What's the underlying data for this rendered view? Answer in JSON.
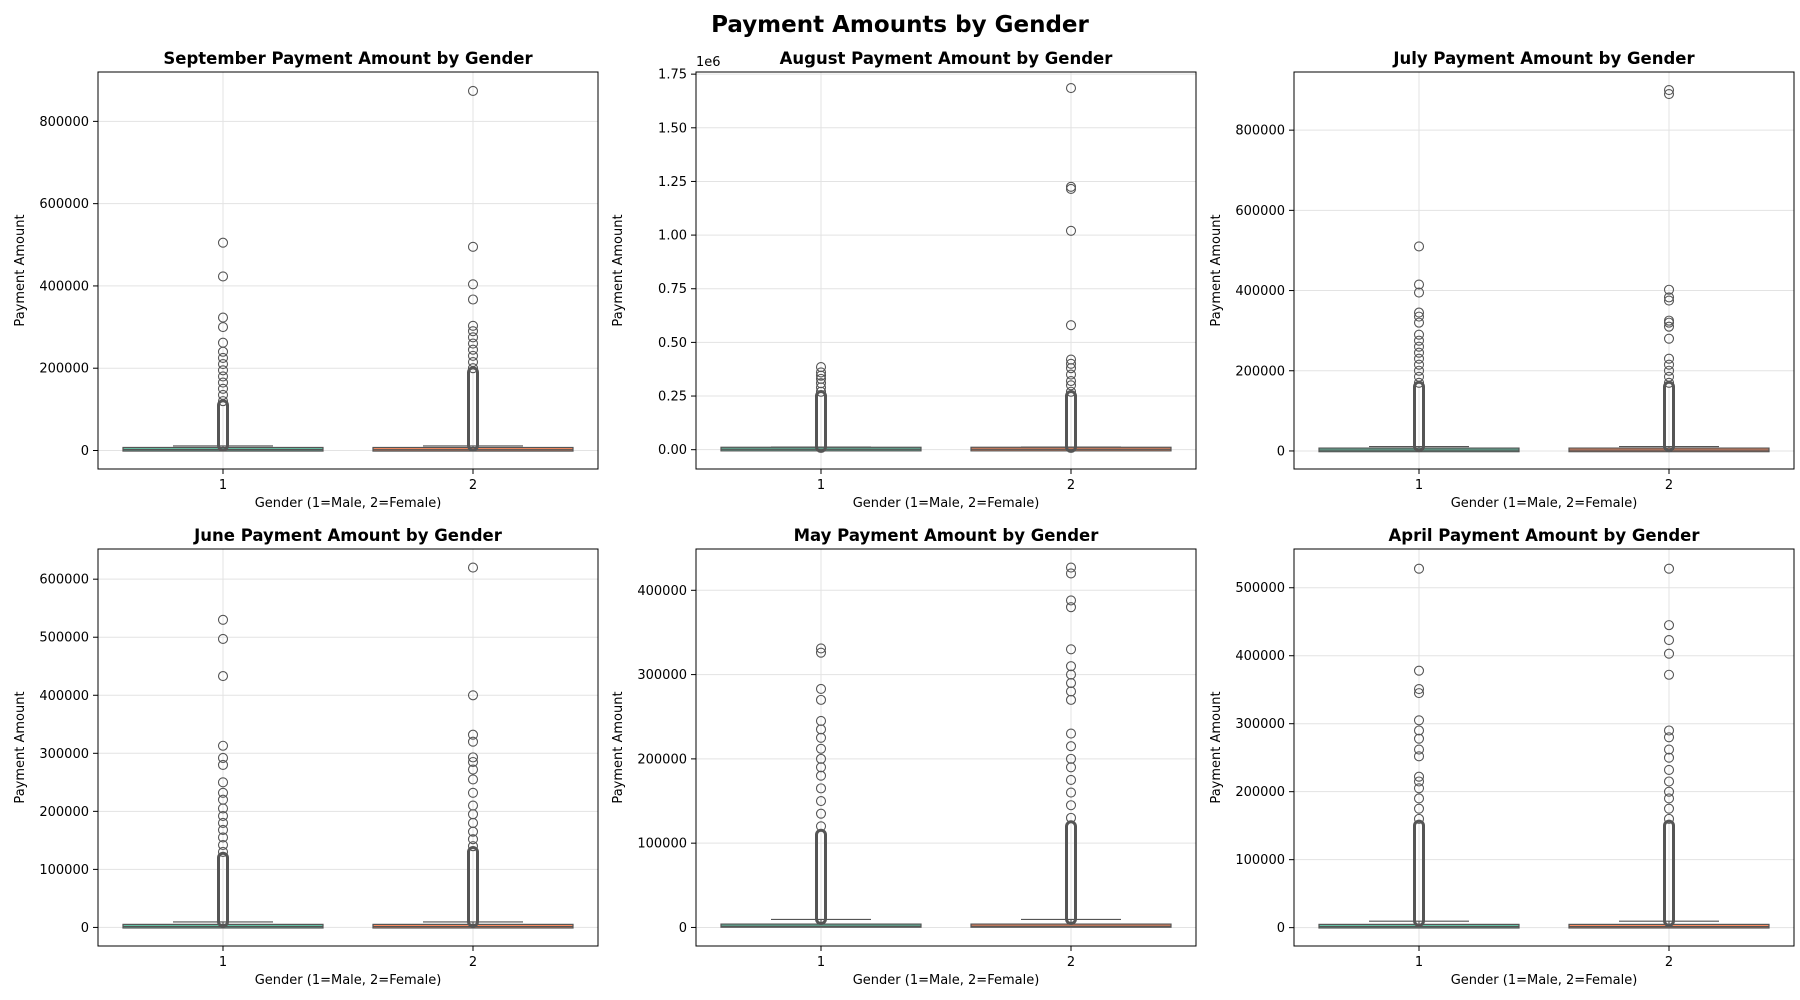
{
  "figure_title": "Payment Amounts by Gender",
  "colors": {
    "male_box": "#66c2a5",
    "female_box": "#fc8d62",
    "outlier": "#555555",
    "grid": "#e3e3e3"
  },
  "chart_data": [
    {
      "type": "box",
      "title": "September Payment Amount by Gender",
      "xlabel": "Gender (1=Male, 2=Female)",
      "ylabel": "Payment Amount",
      "categories": [
        "1",
        "2"
      ],
      "ylim": [
        -45000,
        920000
      ],
      "yticks": [
        0,
        200000,
        400000,
        600000,
        800000
      ],
      "ytick_labels": [
        "0",
        "200000",
        "400000",
        "600000",
        "800000"
      ],
      "offset_label": "",
      "grid": true,
      "series": [
        {
          "category": "1",
          "q1": 900,
          "median": 2100,
          "q3": 5000,
          "whisker_low": 0,
          "whisker_high": 11000,
          "dense_from": 12000,
          "dense_to": 110000,
          "outliers": [
            120000,
            135000,
            150000,
            165000,
            180000,
            195000,
            210000,
            225000,
            240000,
            262000,
            300000,
            323000,
            423000,
            505000
          ]
        },
        {
          "category": "2",
          "q1": 800,
          "median": 2000,
          "q3": 5000,
          "whisker_low": 0,
          "whisker_high": 11000,
          "dense_from": 12000,
          "dense_to": 190000,
          "outliers": [
            200000,
            215000,
            230000,
            245000,
            260000,
            275000,
            290000,
            303000,
            367000,
            404000,
            495000,
            874000
          ]
        }
      ]
    },
    {
      "type": "box",
      "title": "August Payment Amount by Gender",
      "xlabel": "Gender (1=Male, 2=Female)",
      "ylabel": "Payment Amount",
      "categories": [
        "1",
        "2"
      ],
      "ylim": [
        -90000,
        1760000
      ],
      "yticks": [
        0,
        250000,
        500000,
        750000,
        1000000,
        1250000,
        1500000,
        1750000
      ],
      "ytick_labels": [
        "0.00",
        "0.25",
        "0.50",
        "0.75",
        "1.00",
        "1.25",
        "1.50",
        "1.75"
      ],
      "offset_label": "1e6",
      "grid": true,
      "series": [
        {
          "category": "1",
          "q1": 800,
          "median": 2000,
          "q3": 5000,
          "whisker_low": 0,
          "whisker_high": 12000,
          "dense_from": 13000,
          "dense_to": 250000,
          "outliers": [
            270000,
            290000,
            310000,
            330000,
            345000,
            360000,
            385000
          ]
        },
        {
          "category": "2",
          "q1": 800,
          "median": 2000,
          "q3": 5000,
          "whisker_low": 0,
          "whisker_high": 12000,
          "dense_from": 13000,
          "dense_to": 250000,
          "outliers": [
            270000,
            300000,
            320000,
            350000,
            380000,
            400000,
            420000,
            580000,
            1020000,
            1215000,
            1225000,
            1685000
          ]
        }
      ]
    },
    {
      "type": "box",
      "title": "July Payment Amount by Gender",
      "xlabel": "Gender (1=Male, 2=Female)",
      "ylabel": "Payment Amount",
      "categories": [
        "1",
        "2"
      ],
      "ylim": [
        -45000,
        945000
      ],
      "yticks": [
        0,
        200000,
        400000,
        600000,
        800000
      ],
      "ytick_labels": [
        "0",
        "200000",
        "400000",
        "600000",
        "800000"
      ],
      "offset_label": "",
      "grid": true,
      "series": [
        {
          "category": "1",
          "q1": 800,
          "median": 2000,
          "q3": 4500,
          "whisker_low": 0,
          "whisker_high": 11000,
          "dense_from": 12000,
          "dense_to": 160000,
          "outliers": [
            170000,
            185000,
            200000,
            215000,
            230000,
            245000,
            260000,
            275000,
            290000,
            320000,
            335000,
            345000,
            395000,
            415000,
            510000
          ]
        },
        {
          "category": "2",
          "q1": 800,
          "median": 2000,
          "q3": 4500,
          "whisker_low": 0,
          "whisker_high": 11000,
          "dense_from": 12000,
          "dense_to": 160000,
          "outliers": [
            170000,
            185000,
            200000,
            215000,
            230000,
            280000,
            310000,
            320000,
            325000,
            375000,
            383000,
            402000,
            890000,
            900000
          ]
        }
      ]
    },
    {
      "type": "box",
      "title": "June Payment Amount by Gender",
      "xlabel": "Gender (1=Male, 2=Female)",
      "ylabel": "Payment Amount",
      "categories": [
        "1",
        "2"
      ],
      "ylim": [
        -32000,
        652000
      ],
      "yticks": [
        0,
        100000,
        200000,
        300000,
        400000,
        500000,
        600000
      ],
      "ytick_labels": [
        "0",
        "100000",
        "200000",
        "300000",
        "400000",
        "500000",
        "600000"
      ],
      "offset_label": "",
      "grid": true,
      "series": [
        {
          "category": "1",
          "q1": 300,
          "median": 1500,
          "q3": 4000,
          "whisker_low": 0,
          "whisker_high": 9500,
          "dense_from": 10000,
          "dense_to": 120000,
          "outliers": [
            130000,
            142000,
            155000,
            168000,
            180000,
            192000,
            205000,
            220000,
            232000,
            250000,
            280000,
            292000,
            313000,
            433000,
            497000,
            530000
          ]
        },
        {
          "category": "2",
          "q1": 300,
          "median": 1500,
          "q3": 4000,
          "whisker_low": 0,
          "whisker_high": 9500,
          "dense_from": 10000,
          "dense_to": 130000,
          "outliers": [
            140000,
            152000,
            165000,
            180000,
            195000,
            210000,
            232000,
            255000,
            272000,
            285000,
            293000,
            320000,
            332000,
            400000,
            620000
          ]
        }
      ]
    },
    {
      "type": "box",
      "title": "May Payment Amount by Gender",
      "xlabel": "Gender (1=Male, 2=Female)",
      "ylabel": "Payment Amount",
      "categories": [
        "1",
        "2"
      ],
      "ylim": [
        -22000,
        449000
      ],
      "yticks": [
        0,
        100000,
        200000,
        300000,
        400000
      ],
      "ytick_labels": [
        "0",
        "100000",
        "200000",
        "300000",
        "400000"
      ],
      "offset_label": "",
      "grid": true,
      "series": [
        {
          "category": "1",
          "q1": 300,
          "median": 1500,
          "q3": 4000,
          "whisker_low": 0,
          "whisker_high": 9500,
          "dense_from": 10000,
          "dense_to": 110000,
          "outliers": [
            120000,
            135000,
            150000,
            165000,
            180000,
            190000,
            200000,
            212000,
            225000,
            235000,
            245000,
            270000,
            283000,
            326000,
            331000
          ]
        },
        {
          "category": "2",
          "q1": 300,
          "median": 1500,
          "q3": 4000,
          "whisker_low": 0,
          "whisker_high": 9500,
          "dense_from": 10000,
          "dense_to": 120000,
          "outliers": [
            130000,
            145000,
            160000,
            175000,
            190000,
            200000,
            215000,
            230000,
            270000,
            280000,
            290000,
            300000,
            310000,
            330000,
            380000,
            388000,
            420000,
            427000
          ]
        }
      ]
    },
    {
      "type": "box",
      "title": "April Payment Amount by Gender",
      "xlabel": "Gender (1=Male, 2=Female)",
      "ylabel": "Payment Amount",
      "categories": [
        "1",
        "2"
      ],
      "ylim": [
        -27000,
        557000
      ],
      "yticks": [
        0,
        100000,
        200000,
        300000,
        400000,
        500000
      ],
      "ytick_labels": [
        "0",
        "100000",
        "200000",
        "300000",
        "400000",
        "500000"
      ],
      "offset_label": "",
      "grid": true,
      "series": [
        {
          "category": "1",
          "q1": 300,
          "median": 1500,
          "q3": 4000,
          "whisker_low": 0,
          "whisker_high": 9500,
          "dense_from": 10000,
          "dense_to": 150000,
          "outliers": [
            160000,
            175000,
            190000,
            205000,
            215000,
            222000,
            252000,
            262000,
            278000,
            290000,
            305000,
            345000,
            351000,
            378000,
            528000
          ]
        },
        {
          "category": "2",
          "q1": 300,
          "median": 1500,
          "q3": 4000,
          "whisker_low": 0,
          "whisker_high": 9500,
          "dense_from": 10000,
          "dense_to": 150000,
          "outliers": [
            160000,
            175000,
            190000,
            200000,
            215000,
            232000,
            250000,
            262000,
            280000,
            290000,
            372000,
            403000,
            423000,
            445000,
            528000
          ]
        }
      ]
    }
  ]
}
